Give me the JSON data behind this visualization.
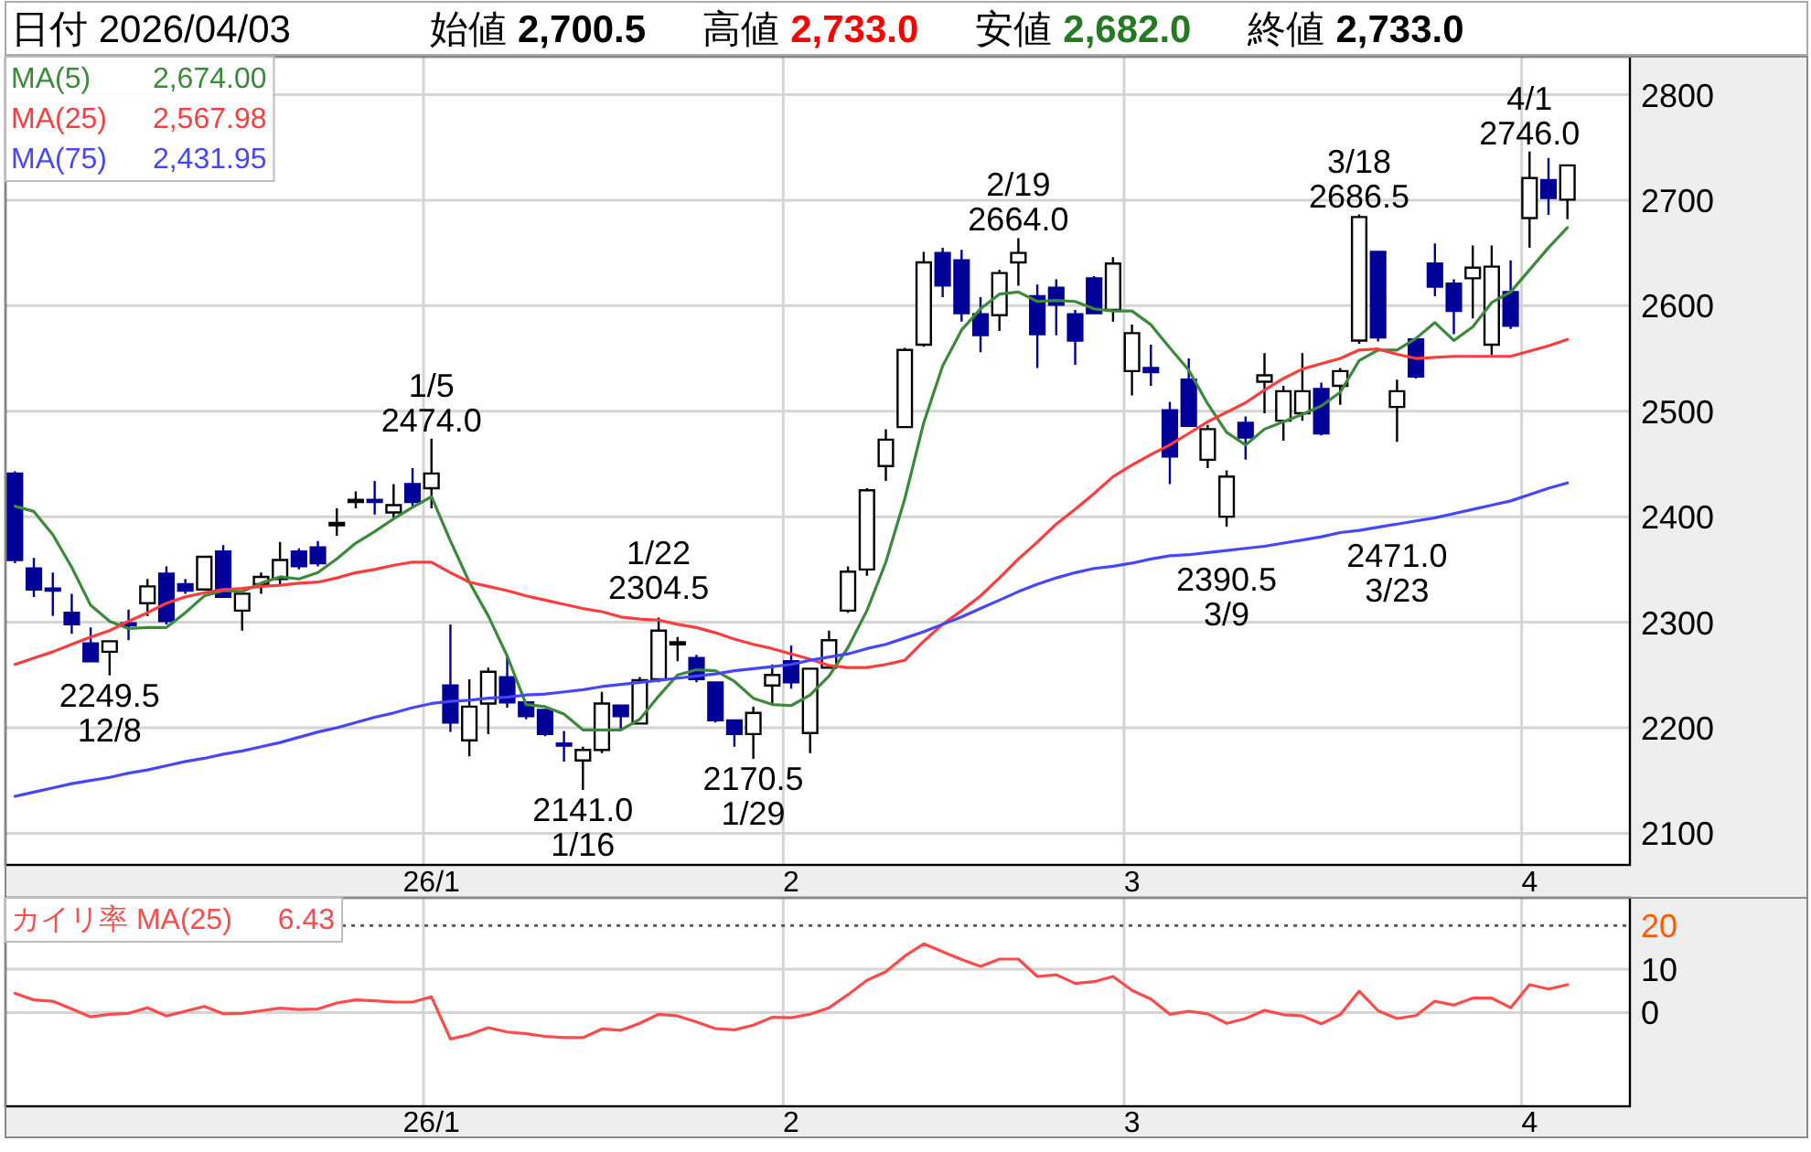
{
  "chart_data": [
    {
      "type": "candlestick",
      "title": "日付 2026/04/03",
      "annotations": [
        "始値 2,700.5",
        "高値 2,733.0",
        "安値 2,682.0",
        "終値 2,733.0",
        {
          "text": "2249.5\n12/8",
          "y": 2249.5
        },
        {
          "text": "1/5\n2474.0",
          "y": 2474.0
        },
        {
          "text": "2141.0\n1/16",
          "y": 2141.0
        },
        {
          "text": "1/22\n2304.5",
          "y": 2304.5
        },
        {
          "text": "2170.5\n1/29",
          "y": 2170.5
        },
        {
          "text": "2/19\n2664.0",
          "y": 2664.0
        },
        {
          "text": "2390.5\n3/9",
          "y": 2390.5
        },
        {
          "text": "3/18\n2686.5",
          "y": 2686.5
        },
        {
          "text": "2471.0\n3/23",
          "y": 2471.0
        },
        {
          "text": "4/1\n2746.0",
          "y": 2746.0
        }
      ],
      "categories": [
        null,
        null,
        null,
        null,
        null,
        null,
        null,
        null,
        null,
        null,
        null,
        null,
        null,
        null,
        null,
        null,
        null,
        null,
        null,
        null,
        null,
        null,
        "26/1",
        null,
        null,
        null,
        null,
        null,
        null,
        null,
        null,
        null,
        null,
        null,
        null,
        null,
        null,
        null,
        null,
        null,
        null,
        "2",
        null,
        null,
        null,
        null,
        null,
        null,
        null,
        null,
        null,
        null,
        null,
        null,
        null,
        null,
        null,
        null,
        null,
        "3",
        null,
        null,
        null,
        null,
        null,
        null,
        null,
        null,
        null,
        null,
        null,
        null,
        null,
        null,
        null,
        null,
        null,
        null,
        null,
        null,
        "4",
        null,
        null
      ],
      "ohlc": [
        [
          2441,
          2443,
          2356,
          2359
        ],
        [
          2351,
          2361,
          2324,
          2331
        ],
        [
          2332,
          2347,
          2306,
          2330
        ],
        [
          2309,
          2327,
          2289,
          2298
        ],
        [
          2280,
          2295,
          2262,
          2263
        ],
        [
          2272,
          2283,
          2249.5,
          2282
        ],
        [
          2299,
          2312,
          2283,
          2297
        ],
        [
          2318,
          2341,
          2306,
          2334
        ],
        [
          2346,
          2353,
          2298,
          2301
        ],
        [
          2336,
          2341,
          2327,
          2330
        ],
        [
          2331,
          2363,
          2330,
          2362
        ],
        [
          2367,
          2373,
          2323,
          2324
        ],
        [
          2311,
          2328,
          2292,
          2327
        ],
        [
          2336,
          2347,
          2327,
          2343
        ],
        [
          2341,
          2376,
          2335,
          2359
        ],
        [
          2367,
          2370,
          2350,
          2353
        ],
        [
          2371,
          2377,
          2353,
          2356
        ],
        [
          2393,
          2408,
          2382,
          2393
        ],
        [
          2415,
          2424,
          2408,
          2415
        ],
        [
          2416,
          2434,
          2402,
          2414
        ],
        [
          2404,
          2431,
          2399,
          2411
        ],
        [
          2431,
          2446,
          2410,
          2414
        ],
        [
          2427,
          2474.0,
          2408,
          2441
        ],
        [
          2240,
          2298,
          2196,
          2205
        ],
        [
          2188,
          2246,
          2173,
          2220
        ],
        [
          2223,
          2257,
          2194,
          2253
        ],
        [
          2248,
          2269,
          2219,
          2224
        ],
        [
          2224,
          2225,
          2208,
          2211
        ],
        [
          2217,
          2218,
          2192,
          2194
        ],
        [
          2185,
          2197,
          2168,
          2183
        ],
        [
          2169,
          2182,
          2141.0,
          2179
        ],
        [
          2179,
          2234,
          2176,
          2223
        ],
        [
          2221,
          2222,
          2199,
          2211
        ],
        [
          2204,
          2248,
          2203,
          2245
        ],
        [
          2246,
          2304.5,
          2243,
          2292
        ],
        [
          2280,
          2286,
          2263,
          2280
        ],
        [
          2266,
          2269,
          2243,
          2246
        ],
        [
          2243,
          2244,
          2205,
          2207
        ],
        [
          2207,
          2208,
          2182,
          2194
        ],
        [
          2194,
          2220,
          2170.5,
          2214
        ],
        [
          2240,
          2260,
          2221,
          2250
        ],
        [
          2263,
          2278,
          2237,
          2243
        ],
        [
          2195,
          2257,
          2176,
          2256
        ],
        [
          2257,
          2292,
          2257,
          2283
        ],
        [
          2311,
          2353,
          2309,
          2348
        ],
        [
          2350,
          2427,
          2344,
          2425
        ],
        [
          2448,
          2483,
          2434,
          2473
        ],
        [
          2485,
          2560,
          2484,
          2558
        ],
        [
          2563,
          2651,
          2561,
          2641
        ],
        [
          2650,
          2655,
          2608,
          2619
        ],
        [
          2643,
          2653,
          2585,
          2593
        ],
        [
          2592,
          2608,
          2556,
          2572
        ],
        [
          2591,
          2634,
          2576,
          2631
        ],
        [
          2641,
          2664.0,
          2619,
          2650
        ],
        [
          2609,
          2620,
          2541,
          2573
        ],
        [
          2617,
          2625,
          2572,
          2601
        ],
        [
          2592,
          2596,
          2544,
          2567
        ],
        [
          2626,
          2628,
          2592,
          2593
        ],
        [
          2596,
          2646,
          2585,
          2640
        ],
        [
          2538,
          2582,
          2515,
          2574
        ],
        [
          2541,
          2563,
          2524,
          2537
        ],
        [
          2501,
          2509,
          2431,
          2457
        ],
        [
          2530,
          2550,
          2485,
          2486
        ],
        [
          2454,
          2487,
          2446,
          2483
        ],
        [
          2400,
          2444,
          2390.5,
          2438
        ],
        [
          2489,
          2495,
          2454,
          2475
        ],
        [
          2528,
          2555,
          2498,
          2534
        ],
        [
          2491,
          2524,
          2472,
          2519
        ],
        [
          2498,
          2555,
          2491,
          2519
        ],
        [
          2521,
          2527,
          2477,
          2479
        ],
        [
          2524,
          2541,
          2506,
          2538
        ],
        [
          2567,
          2686.5,
          2564,
          2684
        ],
        [
          2651,
          2652,
          2566,
          2570
        ],
        [
          2504,
          2530,
          2471.0,
          2519
        ],
        [
          2568,
          2570,
          2531,
          2533
        ],
        [
          2640,
          2659,
          2609,
          2618
        ],
        [
          2621,
          2625,
          2573,
          2595
        ],
        [
          2626,
          2657,
          2588,
          2636
        ],
        [
          2563,
          2657,
          2553,
          2637
        ],
        [
          2613,
          2643,
          2578,
          2581
        ],
        [
          2683,
          2746.0,
          2655,
          2721
        ],
        [
          2719,
          2740,
          2686,
          2702
        ],
        [
          2700.5,
          2733.0,
          2682.0,
          2733.0
        ]
      ],
      "colors": [
        "#000099",
        "#000099",
        "#000099",
        "#000099",
        "#000099",
        "#ffffff",
        "#000099",
        "#ffffff",
        "#000099",
        "#000099",
        "#ffffff",
        "#000099",
        "#ffffff",
        "#ffffff",
        "#ffffff",
        "#000099",
        "#000099",
        "#000000",
        "#000000",
        "#000099",
        "#ffffff",
        "#000099",
        "#ffffff",
        "#000099",
        "#ffffff",
        "#ffffff",
        "#000099",
        "#000099",
        "#000099",
        "#000099",
        "#ffffff",
        "#ffffff",
        "#000099",
        "#ffffff",
        "#ffffff",
        "#000000",
        "#000099",
        "#000099",
        "#000099",
        "#ffffff",
        "#ffffff",
        "#000099",
        "#ffffff",
        "#ffffff",
        "#ffffff",
        "#ffffff",
        "#ffffff",
        "#ffffff",
        "#ffffff",
        "#000099",
        "#000099",
        "#000099",
        "#ffffff",
        "#ffffff",
        "#000099",
        "#000099",
        "#000099",
        "#000099",
        "#ffffff",
        "#ffffff",
        "#000099",
        "#000099",
        "#000099",
        "#ffffff",
        "#ffffff",
        "#000099",
        "#ffffff",
        "#ffffff",
        "#ffffff",
        "#000099",
        "#ffffff",
        "#ffffff",
        "#000099",
        "#ffffff",
        "#000099",
        "#000099",
        "#000099",
        "#ffffff",
        "#ffffff",
        "#000099",
        "#ffffff",
        "#000099",
        "#ffffff"
      ],
      "series": [
        {
          "name": "MA(5) 2,674.00",
          "type": "line",
          "color": "#3a8a3a",
          "values": [
            2410,
            2405,
            2383,
            2352,
            2316,
            2301,
            2294,
            2295,
            2295,
            2309,
            2325,
            2330,
            2329,
            2337,
            2343,
            2341,
            2347,
            2360,
            2375,
            2386,
            2398,
            2409,
            2419,
            2377,
            2338,
            2306,
            2268,
            2222,
            2220,
            2213,
            2198,
            2198,
            2198,
            2208,
            2230,
            2250,
            2255,
            2254,
            2244,
            2228,
            2222,
            2221,
            2231,
            2249,
            2276,
            2311,
            2357,
            2417,
            2489,
            2543,
            2577,
            2597,
            2611,
            2613,
            2604,
            2605,
            2604,
            2597,
            2595,
            2595,
            2582,
            2560,
            2539,
            2507,
            2480,
            2468,
            2483,
            2490,
            2497,
            2505,
            2518,
            2548,
            2558,
            2558,
            2569,
            2584,
            2567,
            2580,
            2603,
            2613,
            2634,
            2655,
            2674
          ]
        },
        {
          "name": "MA(25) 2,567.98",
          "type": "line",
          "color": "#ff3c3c",
          "values": [
            2260,
            2266,
            2272,
            2279,
            2286,
            2292,
            2301,
            2309,
            2318,
            2324,
            2328,
            2331,
            2332,
            2334,
            2335,
            2337,
            2338,
            2342,
            2347,
            2350,
            2354,
            2357,
            2357,
            2347,
            2338,
            2334,
            2330,
            2325,
            2321,
            2317,
            2313,
            2310,
            2305,
            2303,
            2302,
            2298,
            2295,
            2290,
            2284,
            2279,
            2275,
            2270,
            2265,
            2259,
            2257,
            2257,
            2260,
            2264,
            2282,
            2298,
            2311,
            2325,
            2342,
            2360,
            2376,
            2393,
            2407,
            2422,
            2438,
            2449,
            2459,
            2468,
            2479,
            2490,
            2499,
            2508,
            2520,
            2531,
            2540,
            2545,
            2550,
            2558,
            2559,
            2554,
            2550,
            2551,
            2552,
            2552,
            2552,
            2552,
            2557,
            2562,
            2568
          ]
        },
        {
          "name": "MA(75) 2,431.95",
          "type": "line",
          "color": "#4646ff",
          "values": [
            2135,
            2139,
            2143,
            2147,
            2150,
            2153,
            2157,
            2160,
            2164,
            2168,
            2171,
            2175,
            2178,
            2182,
            2186,
            2191,
            2196,
            2200,
            2205,
            2210,
            2214,
            2219,
            2223,
            2225,
            2226,
            2228,
            2229,
            2231,
            2232,
            2234,
            2236,
            2239,
            2241,
            2243,
            2245,
            2247,
            2249,
            2251,
            2254,
            2256,
            2258,
            2260,
            2264,
            2267,
            2270,
            2275,
            2279,
            2285,
            2291,
            2298,
            2305,
            2313,
            2321,
            2329,
            2336,
            2342,
            2347,
            2351,
            2353,
            2356,
            2360,
            2363,
            2364,
            2366,
            2368,
            2370,
            2372,
            2375,
            2378,
            2381,
            2385,
            2387,
            2390,
            2393,
            2396,
            2399,
            2403,
            2407,
            2411,
            2415,
            2421,
            2427,
            2432
          ]
        }
      ],
      "ylim": [
        2070,
        2836
      ],
      "yticks": [
        2100,
        2200,
        2300,
        2400,
        2500,
        2600,
        2700,
        2800
      ],
      "grid": true
    },
    {
      "type": "line",
      "categories": [
        null,
        null,
        null,
        null,
        null,
        null,
        null,
        null,
        null,
        null,
        null,
        null,
        null,
        null,
        null,
        null,
        null,
        null,
        null,
        null,
        null,
        null,
        "26/1",
        null,
        null,
        null,
        null,
        null,
        null,
        null,
        null,
        null,
        null,
        null,
        null,
        null,
        null,
        null,
        null,
        null,
        null,
        "2",
        null,
        null,
        null,
        null,
        null,
        null,
        null,
        null,
        null,
        null,
        null,
        null,
        null,
        null,
        null,
        null,
        null,
        "3",
        null,
        null,
        null,
        null,
        null,
        null,
        null,
        null,
        null,
        null,
        null,
        null,
        null,
        null,
        null,
        null,
        null,
        null,
        null,
        null,
        "4",
        null,
        null
      ],
      "series": [
        {
          "name": "カイリ率 MA(25) 6.43",
          "color": "#ff4a4a",
          "values": [
            4.4,
            2.9,
            2.6,
            0.8,
            -1.0,
            -0.4,
            -0.2,
            1.1,
            -0.8,
            0.3,
            1.4,
            -0.3,
            -0.2,
            0.4,
            1.0,
            0.7,
            0.8,
            2.2,
            2.9,
            2.7,
            2.4,
            2.4,
            3.6,
            -6.1,
            -5.1,
            -3.5,
            -4.5,
            -4.9,
            -5.5,
            -5.8,
            -5.8,
            -3.8,
            -4.1,
            -2.5,
            -0.4,
            -0.8,
            -2.2,
            -3.7,
            -4.0,
            -2.9,
            -1.1,
            -1.2,
            -0.4,
            1.1,
            4.1,
            7.4,
            9.4,
            13.0,
            15.8,
            14.0,
            12.2,
            10.6,
            12.3,
            12.3,
            8.3,
            8.7,
            6.7,
            7.1,
            8.3,
            5.1,
            3.1,
            -0.4,
            0.3,
            -0.3,
            -2.5,
            -1.4,
            0.5,
            -0.5,
            -0.8,
            -2.6,
            -0.5,
            4.9,
            0.4,
            -1.4,
            -0.7,
            2.6,
            1.7,
            3.3,
            3.3,
            1.1,
            6.4,
            5.4,
            6.4
          ]
        }
      ],
      "ylim": [
        -21.6,
        26.4
      ],
      "yticks": [
        0,
        10
      ],
      "ref_lines": [
        {
          "axis": "y",
          "value": 20,
          "label": "20",
          "color": "#555555",
          "line_style": "dotted"
        }
      ],
      "grid": true
    }
  ]
}
